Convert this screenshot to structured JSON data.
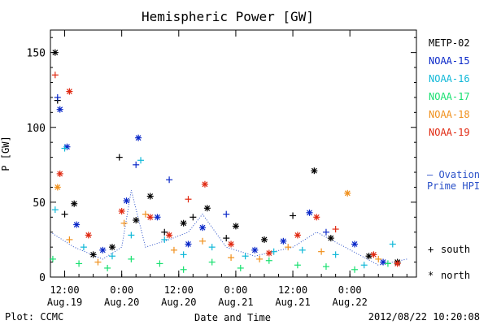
{
  "chart_data": {
    "type": "scatter",
    "title": "Hemispheric Power [GW]",
    "xlabel": "Date and Time",
    "ylabel": "P [GW]",
    "ylim": [
      0,
      165
    ],
    "yticks": [
      0,
      50,
      100,
      150
    ],
    "xlim": [
      "2012-08-19T09:00",
      "2012-08-22T14:00"
    ],
    "xticks": [
      {
        "time": "2012-08-19T12:00",
        "line1": "12:00",
        "line2": "Aug.19"
      },
      {
        "time": "2012-08-20T00:00",
        "line1": "0:00",
        "line2": "Aug.20"
      },
      {
        "time": "2012-08-20T12:00",
        "line1": "12:00",
        "line2": "Aug.20"
      },
      {
        "time": "2012-08-21T00:00",
        "line1": "0:00",
        "line2": "Aug.21"
      },
      {
        "time": "2012-08-21T12:00",
        "line1": "12:00",
        "line2": "Aug.21"
      },
      {
        "time": "2012-08-22T00:00",
        "line1": "0:00",
        "line2": "Aug.22"
      }
    ],
    "legend_position": "right",
    "series": [
      {
        "name": "METP-02",
        "color": "#000000",
        "points": [
          [
            "2012-08-19T10:00",
            150,
            "north"
          ],
          [
            "2012-08-19T10:30",
            118,
            "south"
          ],
          [
            "2012-08-19T12:00",
            42,
            "south"
          ],
          [
            "2012-08-19T14:00",
            49,
            "north"
          ],
          [
            "2012-08-19T18:00",
            15,
            "north"
          ],
          [
            "2012-08-19T22:00",
            20,
            "north"
          ],
          [
            "2012-08-19T23:30",
            80,
            "south"
          ],
          [
            "2012-08-20T03:00",
            38,
            "north"
          ],
          [
            "2012-08-20T06:00",
            54,
            "north"
          ],
          [
            "2012-08-20T09:00",
            30,
            "south"
          ],
          [
            "2012-08-20T13:00",
            36,
            "north"
          ],
          [
            "2012-08-20T15:00",
            40,
            "south"
          ],
          [
            "2012-08-20T18:00",
            46,
            "north"
          ],
          [
            "2012-08-20T22:00",
            26,
            "south"
          ],
          [
            "2012-08-21T00:00",
            34,
            "north"
          ],
          [
            "2012-08-21T06:00",
            25,
            "north"
          ],
          [
            "2012-08-21T12:00",
            41,
            "south"
          ],
          [
            "2012-08-21T16:30",
            71,
            "north"
          ],
          [
            "2012-08-21T20:00",
            26,
            "north"
          ],
          [
            "2012-08-22T04:00",
            14,
            "north"
          ],
          [
            "2012-08-22T10:00",
            10,
            "north"
          ]
        ]
      },
      {
        "name": "NOAA-15",
        "color": "#0a28c8",
        "points": [
          [
            "2012-08-19T10:30",
            120,
            "south"
          ],
          [
            "2012-08-19T11:00",
            112,
            "north"
          ],
          [
            "2012-08-19T12:30",
            87,
            "north"
          ],
          [
            "2012-08-19T14:30",
            35,
            "north"
          ],
          [
            "2012-08-19T20:00",
            18,
            "north"
          ],
          [
            "2012-08-20T01:00",
            51,
            "north"
          ],
          [
            "2012-08-20T03:00",
            75,
            "south"
          ],
          [
            "2012-08-20T03:30",
            93,
            "north"
          ],
          [
            "2012-08-20T07:30",
            40,
            "north"
          ],
          [
            "2012-08-20T10:00",
            65,
            "south"
          ],
          [
            "2012-08-20T14:00",
            22,
            "north"
          ],
          [
            "2012-08-20T17:00",
            33,
            "north"
          ],
          [
            "2012-08-20T22:00",
            42,
            "south"
          ],
          [
            "2012-08-21T04:00",
            18,
            "north"
          ],
          [
            "2012-08-21T10:00",
            24,
            "north"
          ],
          [
            "2012-08-21T15:30",
            43,
            "north"
          ],
          [
            "2012-08-21T19:00",
            30,
            "south"
          ],
          [
            "2012-08-22T01:00",
            22,
            "north"
          ],
          [
            "2012-08-22T07:00",
            10,
            "north"
          ]
        ]
      },
      {
        "name": "NOAA-16",
        "color": "#10b8d8",
        "points": [
          [
            "2012-08-19T10:00",
            45,
            "south"
          ],
          [
            "2012-08-19T12:00",
            86,
            "south"
          ],
          [
            "2012-08-19T16:00",
            20,
            "south"
          ],
          [
            "2012-08-19T22:00",
            14,
            "south"
          ],
          [
            "2012-08-20T02:00",
            28,
            "south"
          ],
          [
            "2012-08-20T04:00",
            78,
            "south"
          ],
          [
            "2012-08-20T09:00",
            25,
            "south"
          ],
          [
            "2012-08-20T13:00",
            15,
            "south"
          ],
          [
            "2012-08-20T19:00",
            20,
            "south"
          ],
          [
            "2012-08-21T02:00",
            14,
            "south"
          ],
          [
            "2012-08-21T08:00",
            17,
            "south"
          ],
          [
            "2012-08-21T14:00",
            18,
            "south"
          ],
          [
            "2012-08-21T21:00",
            15,
            "south"
          ],
          [
            "2012-08-22T03:00",
            8,
            "south"
          ],
          [
            "2012-08-22T09:00",
            22,
            "south"
          ]
        ]
      },
      {
        "name": "NOAA-17",
        "color": "#18e070",
        "points": [
          [
            "2012-08-19T09:30",
            12,
            "south"
          ],
          [
            "2012-08-19T15:00",
            9,
            "south"
          ],
          [
            "2012-08-19T21:00",
            6,
            "south"
          ],
          [
            "2012-08-20T02:00",
            12,
            "south"
          ],
          [
            "2012-08-20T08:00",
            9,
            "south"
          ],
          [
            "2012-08-20T13:00",
            5,
            "south"
          ],
          [
            "2012-08-20T19:00",
            10,
            "south"
          ],
          [
            "2012-08-21T01:00",
            6,
            "south"
          ],
          [
            "2012-08-21T07:00",
            11,
            "south"
          ],
          [
            "2012-08-21T13:00",
            8,
            "south"
          ],
          [
            "2012-08-21T19:00",
            7,
            "south"
          ],
          [
            "2012-08-22T01:00",
            5,
            "south"
          ],
          [
            "2012-08-22T08:00",
            9,
            "south"
          ]
        ]
      },
      {
        "name": "NOAA-18",
        "color": "#f0901c",
        "points": [
          [
            "2012-08-19T10:30",
            60,
            "north"
          ],
          [
            "2012-08-19T13:00",
            25,
            "south"
          ],
          [
            "2012-08-19T19:00",
            10,
            "south"
          ],
          [
            "2012-08-20T00:30",
            36,
            "south"
          ],
          [
            "2012-08-20T05:00",
            42,
            "south"
          ],
          [
            "2012-08-20T11:00",
            18,
            "south"
          ],
          [
            "2012-08-20T17:00",
            24,
            "south"
          ],
          [
            "2012-08-20T23:00",
            13,
            "south"
          ],
          [
            "2012-08-21T05:00",
            12,
            "south"
          ],
          [
            "2012-08-21T11:00",
            20,
            "south"
          ],
          [
            "2012-08-21T18:00",
            17,
            "south"
          ],
          [
            "2012-08-21T23:30",
            56,
            "north"
          ],
          [
            "2012-08-22T06:00",
            12,
            "south"
          ]
        ]
      },
      {
        "name": "NOAA-19",
        "color": "#e02810",
        "points": [
          [
            "2012-08-19T10:00",
            135,
            "south"
          ],
          [
            "2012-08-19T11:00",
            69,
            "north"
          ],
          [
            "2012-08-19T13:00",
            124,
            "north"
          ],
          [
            "2012-08-19T17:00",
            28,
            "north"
          ],
          [
            "2012-08-20T00:00",
            44,
            "north"
          ],
          [
            "2012-08-20T06:00",
            40,
            "north"
          ],
          [
            "2012-08-20T10:00",
            28,
            "north"
          ],
          [
            "2012-08-20T14:00",
            52,
            "south"
          ],
          [
            "2012-08-20T17:30",
            62,
            "north"
          ],
          [
            "2012-08-20T23:00",
            22,
            "north"
          ],
          [
            "2012-08-21T07:00",
            16,
            "north"
          ],
          [
            "2012-08-21T13:00",
            28,
            "north"
          ],
          [
            "2012-08-21T17:00",
            40,
            "north"
          ],
          [
            "2012-08-21T21:00",
            32,
            "south"
          ],
          [
            "2012-08-22T05:00",
            15,
            "north"
          ],
          [
            "2012-08-22T10:00",
            9,
            "north"
          ]
        ]
      }
    ],
    "ovation_model": {
      "label_line1": "— Ovation",
      "label_line2": "Prime HPI",
      "color": "#2a50c8",
      "points": [
        [
          "2012-08-19T09:00",
          30
        ],
        [
          "2012-08-19T14:00",
          20
        ],
        [
          "2012-08-19T20:00",
          12
        ],
        [
          "2012-08-20T00:00",
          20
        ],
        [
          "2012-08-20T02:00",
          58
        ],
        [
          "2012-08-20T05:00",
          20
        ],
        [
          "2012-08-20T10:00",
          25
        ],
        [
          "2012-08-20T14:00",
          30
        ],
        [
          "2012-08-20T17:00",
          42
        ],
        [
          "2012-08-20T22:00",
          20
        ],
        [
          "2012-08-21T04:00",
          14
        ],
        [
          "2012-08-21T12:00",
          20
        ],
        [
          "2012-08-21T17:00",
          30
        ],
        [
          "2012-08-21T23:00",
          20
        ],
        [
          "2012-08-22T06:00",
          8
        ],
        [
          "2012-08-22T12:00",
          12
        ]
      ]
    },
    "symbol_legend": {
      "south_symbol": "+",
      "south_label": "south",
      "north_symbol": "*",
      "north_label": "north"
    }
  },
  "footer": {
    "credit": "Plot: CCMC",
    "timestamp": "2012/08/22 10:20:08"
  },
  "colors": {
    "axis": "#000000",
    "background": "#ffffff"
  }
}
